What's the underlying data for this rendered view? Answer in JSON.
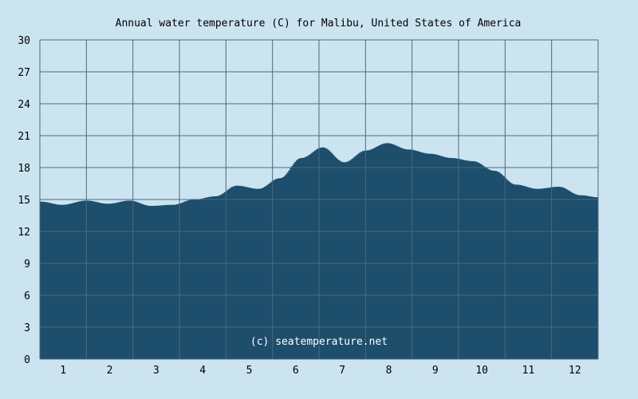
{
  "chart_data": {
    "type": "area",
    "title": "Annual water temperature (C) for Malibu, United States of America",
    "xlabel": "",
    "ylabel": "",
    "ylim": [
      0,
      30
    ],
    "y_ticks": [
      0,
      3,
      6,
      9,
      12,
      15,
      18,
      21,
      24,
      27,
      30
    ],
    "categories": [
      "1",
      "2",
      "3",
      "4",
      "5",
      "6",
      "7",
      "8",
      "9",
      "10",
      "11",
      "12"
    ],
    "grid": true,
    "legend": "none",
    "x": [
      1,
      15,
      31,
      45,
      59,
      73,
      87,
      101,
      115,
      129,
      143,
      157,
      171,
      185,
      199,
      213,
      227,
      241,
      255,
      269,
      283,
      297,
      311,
      325,
      339,
      353,
      365
    ],
    "series": [
      {
        "values": [
          14.8,
          14.5,
          14.9,
          14.6,
          14.9,
          14.4,
          14.5,
          15.0,
          15.3,
          16.3,
          16.0,
          17.0,
          18.9,
          19.9,
          18.5,
          19.6,
          20.3,
          19.7,
          19.3,
          18.9,
          18.6,
          17.7,
          16.4,
          16.0,
          16.2,
          15.4,
          15.2
        ]
      }
    ],
    "colors": {
      "background": "#cce4f0",
      "area_fill": "#1d4e6b",
      "grid": "#4a6a80"
    },
    "watermark": "(c) seatemperature.net"
  }
}
